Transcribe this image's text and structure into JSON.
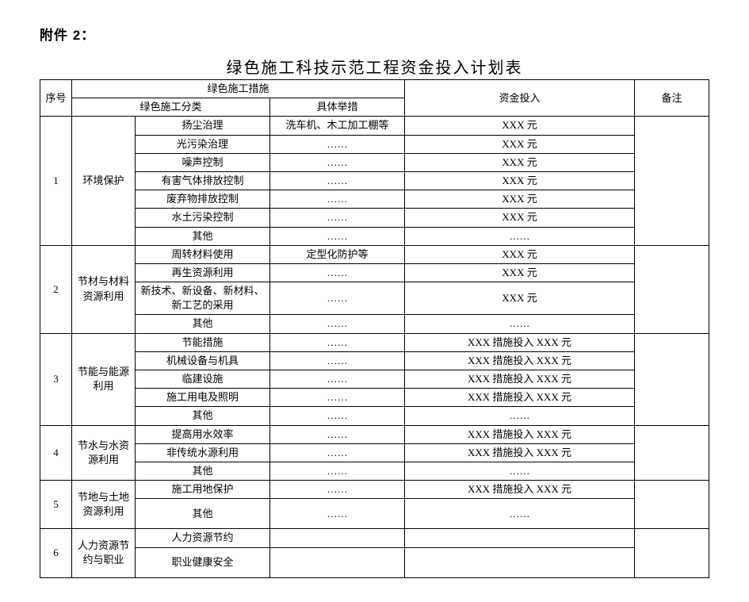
{
  "attachment_label": "附件 2：",
  "title": "绿色施工科技示范工程资金投入计划表",
  "headers": {
    "seq": "序号",
    "measures_group": "绿色施工措施",
    "category": "绿色施工分类",
    "specific": "具体举措",
    "investment": "资金投入",
    "remark": "备注"
  },
  "placeholders": {
    "dots": "……",
    "xxx_yuan": "XXX 元",
    "xxx_measure_xxx_yuan": "XXX 措施投入 XXX 元"
  },
  "sections": [
    {
      "seq": "1",
      "category": "环境保护",
      "rows": [
        {
          "sub": "扬尘治理",
          "measure": "洗车机、木工加工棚等",
          "invest": "XXX 元"
        },
        {
          "sub": "光污染治理",
          "measure": "……",
          "invest": "XXX 元"
        },
        {
          "sub": "噪声控制",
          "measure": "……",
          "invest": "XXX 元"
        },
        {
          "sub": "有害气体排放控制",
          "measure": "……",
          "invest": "XXX 元"
        },
        {
          "sub": "废弃物排放控制",
          "measure": "……",
          "invest": "XXX 元"
        },
        {
          "sub": "水土污染控制",
          "measure": "……",
          "invest": "XXX 元"
        },
        {
          "sub": "其他",
          "measure": "……",
          "invest": "……"
        }
      ]
    },
    {
      "seq": "2",
      "category": "节材与材料资源利用",
      "rows": [
        {
          "sub": "周转材料使用",
          "measure": "定型化防护等",
          "invest": "XXX 元"
        },
        {
          "sub": "再生资源利用",
          "measure": "……",
          "invest": "XXX 元"
        },
        {
          "sub": "新技术、新设备、新材料、新工艺的采用",
          "measure": "……",
          "invest": "XXX 元",
          "tall": true
        },
        {
          "sub": "其他",
          "measure": "……",
          "invest": "……"
        }
      ]
    },
    {
      "seq": "3",
      "category": "节能与能源利用",
      "rows": [
        {
          "sub": "节能措施",
          "measure": "……",
          "invest": "XXX 措施投入 XXX 元"
        },
        {
          "sub": "机械设备与机具",
          "measure": "……",
          "invest": "XXX 措施投入 XXX 元"
        },
        {
          "sub": "临建设施",
          "measure": "……",
          "invest": "XXX 措施投入 XXX 元"
        },
        {
          "sub": "施工用电及照明",
          "measure": "……",
          "invest": "XXX 措施投入 XXX 元"
        },
        {
          "sub": "其他",
          "measure": "……",
          "invest": "……"
        }
      ]
    },
    {
      "seq": "4",
      "category": "节水与水资源利用",
      "rows": [
        {
          "sub": "提高用水效率",
          "measure": "……",
          "invest": "XXX 措施投入 XXX 元"
        },
        {
          "sub": "非传统水源利用",
          "measure": "……",
          "invest": "XXX 措施投入 XXX 元"
        },
        {
          "sub": "其他",
          "measure": "……",
          "invest": "……"
        }
      ]
    },
    {
      "seq": "5",
      "category": "节地与土地资源利用",
      "rows": [
        {
          "sub": "施工用地保护",
          "measure": "……",
          "invest": "XXX 措施投入 XXX 元"
        },
        {
          "sub": "其他",
          "measure": "……",
          "invest": "……",
          "tall": true
        }
      ]
    },
    {
      "seq": "6",
      "category": "人力资源节约与职业",
      "rows": [
        {
          "sub": "人力资源节约",
          "measure": "",
          "invest": ""
        },
        {
          "sub": "职业健康安全",
          "measure": "",
          "invest": "",
          "tall": true
        }
      ]
    }
  ]
}
